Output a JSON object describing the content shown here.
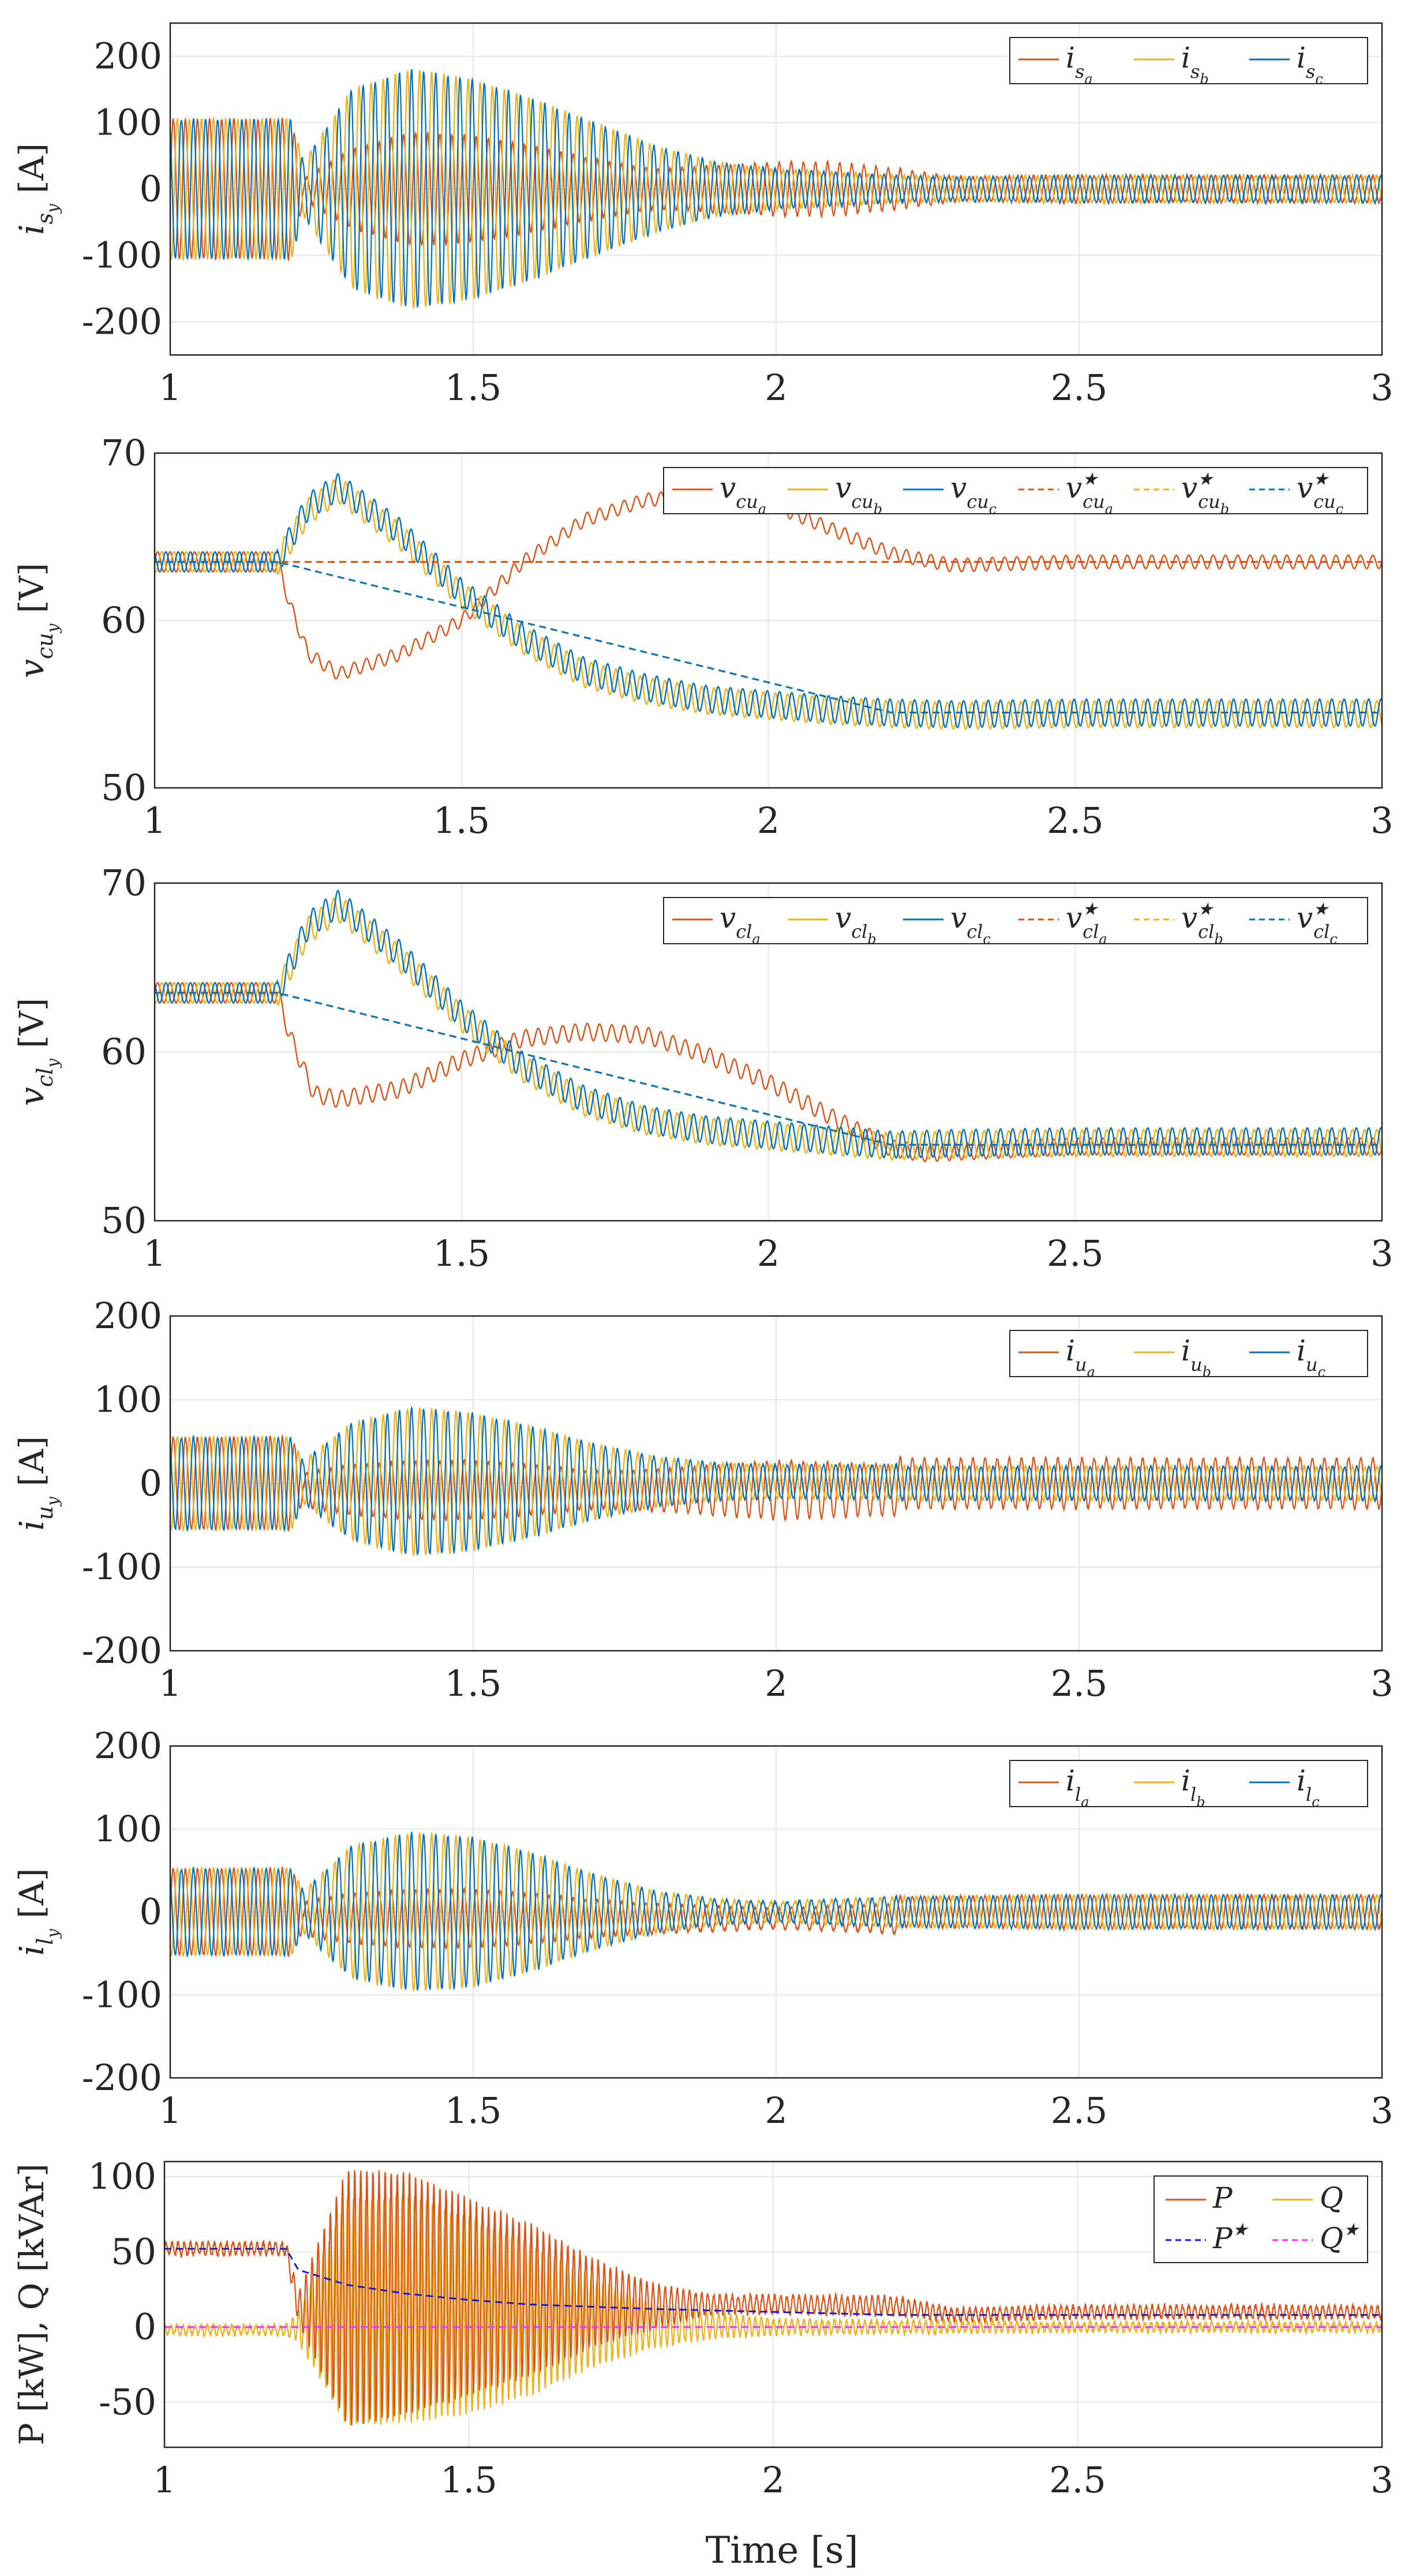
{
  "figure": {
    "xlabel": "Time [s]"
  },
  "colors": {
    "a": "#D95319",
    "b": "#EDB120",
    "c": "#0072BD",
    "refP": "#1a1acc",
    "refQ": "#ff33ff",
    "grid": "#e6e6e6",
    "axis": "#262626"
  },
  "chart_data": [
    {
      "id": "is",
      "type": "line",
      "title": "",
      "xlabel": "",
      "ylabel": {
        "main": "i",
        "sub": "s",
        "subsub": "y",
        "unit": "[A]"
      },
      "xlim": [
        1,
        3
      ],
      "ylim": [
        -250,
        250
      ],
      "xticks": [
        "1",
        "1.5",
        "2",
        "2.5",
        "3"
      ],
      "yticks": [
        "200",
        "100",
        "0",
        "-100",
        "-200"
      ],
      "ytick_values": [
        200,
        100,
        0,
        -100,
        -200
      ],
      "legend": {
        "position": "top-right",
        "layout": "row",
        "entries": [
          {
            "main": "i",
            "sub": "s",
            "subsub": "a",
            "color_key": "a",
            "dash": false
          },
          {
            "main": "i",
            "sub": "s",
            "subsub": "b",
            "color_key": "b",
            "dash": false
          },
          {
            "main": "i",
            "sub": "s",
            "subsub": "c",
            "color_key": "c",
            "dash": false
          }
        ]
      },
      "envelope": {
        "t": [
          1.0,
          1.2,
          1.22,
          1.3,
          1.4,
          1.5,
          1.6,
          1.7,
          1.8,
          1.9,
          2.0,
          2.1,
          2.2,
          2.3,
          2.5,
          3.0
        ],
        "a": [
          105,
          105,
          15,
          60,
          85,
          80,
          65,
          45,
          30,
          35,
          40,
          40,
          30,
          18,
          20,
          20
        ],
        "b": [
          105,
          105,
          40,
          150,
          180,
          165,
          135,
          100,
          65,
          40,
          30,
          25,
          20,
          18,
          20,
          20
        ],
        "c": [
          105,
          105,
          40,
          150,
          180,
          165,
          135,
          100,
          65,
          40,
          30,
          25,
          20,
          18,
          20,
          20
        ]
      },
      "offset": {
        "a": 0,
        "b": 0,
        "c": 0
      },
      "refs": [],
      "noise": 4
    },
    {
      "id": "vcu",
      "type": "line",
      "title": "",
      "xlabel": "",
      "ylabel": {
        "main": "v",
        "sub": "cu",
        "subsub": "y",
        "unit": "[V]"
      },
      "xlim": [
        1,
        3
      ],
      "ylim": [
        50,
        70
      ],
      "xticks": [
        "1",
        "1.5",
        "2",
        "2.5",
        "3"
      ],
      "yticks": [
        "70",
        "60",
        "50"
      ],
      "ytick_values": [
        70,
        60,
        50
      ],
      "legend": {
        "position": "top-right",
        "layout": "row",
        "entries": [
          {
            "main": "v",
            "sub": "cu",
            "subsub": "a",
            "color_key": "a",
            "dash": false
          },
          {
            "main": "v",
            "sub": "cu",
            "subsub": "b",
            "color_key": "b",
            "dash": false
          },
          {
            "main": "v",
            "sub": "cu",
            "subsub": "c",
            "color_key": "c",
            "dash": false
          },
          {
            "main": "v",
            "sub": "cu",
            "subsub": "a",
            "color_key": "a",
            "dash": true,
            "star": true
          },
          {
            "main": "v",
            "sub": "cu",
            "subsub": "b",
            "color_key": "b",
            "dash": true,
            "star": true
          },
          {
            "main": "v",
            "sub": "cu",
            "subsub": "c",
            "color_key": "c",
            "dash": true,
            "star": true
          }
        ]
      },
      "signals": {
        "a": {
          "t": [
            1.0,
            1.2,
            1.22,
            1.25,
            1.3,
            1.4,
            1.5,
            1.6,
            1.7,
            1.8,
            1.9,
            2.0,
            2.1,
            2.2,
            2.3,
            2.5,
            3.0
          ],
          "v": [
            63.5,
            63.5,
            61,
            58,
            56.8,
            58,
            60,
            63.5,
            66,
            67.2,
            67.5,
            67,
            65.5,
            64,
            63.3,
            63.5,
            63.5
          ],
          "amp": 0.4
        },
        "b": {
          "t": [
            1.0,
            1.2,
            1.25,
            1.3,
            1.4,
            1.5,
            1.6,
            1.7,
            1.8,
            1.9,
            2.0,
            2.1,
            2.2,
            2.3,
            2.5,
            3.0
          ],
          "v": [
            63.5,
            63.5,
            66.5,
            67.8,
            65,
            61.5,
            58.8,
            56.8,
            55.8,
            55.2,
            54.9,
            54.6,
            54.4,
            54.3,
            54.4,
            54.4
          ],
          "amp": 0.8
        },
        "c": {
          "t": [
            1.0,
            1.2,
            1.25,
            1.3,
            1.4,
            1.5,
            1.6,
            1.7,
            1.8,
            1.9,
            2.0,
            2.1,
            2.2,
            2.3,
            2.5,
            3.0
          ],
          "v": [
            63.5,
            63.5,
            66.8,
            68.0,
            65.3,
            61.7,
            59,
            57,
            56,
            55.3,
            55,
            54.7,
            54.5,
            54.4,
            54.5,
            54.5
          ],
          "amp": 0.8
        }
      },
      "refs": [
        {
          "color_key": "a",
          "t": [
            1.0,
            3.0
          ],
          "v": [
            63.5,
            63.5
          ]
        },
        {
          "color_key": "b",
          "t": [
            1.0,
            1.2,
            2.2,
            3.0
          ],
          "v": [
            63.5,
            63.5,
            54.5,
            54.5
          ]
        },
        {
          "color_key": "c",
          "t": [
            1.0,
            1.2,
            2.2,
            3.0
          ],
          "v": [
            63.5,
            63.5,
            54.5,
            54.5
          ]
        }
      ]
    },
    {
      "id": "vcl",
      "type": "line",
      "title": "",
      "xlabel": "",
      "ylabel": {
        "main": "v",
        "sub": "cl",
        "subsub": "y",
        "unit": "[V]"
      },
      "xlim": [
        1,
        3
      ],
      "ylim": [
        50,
        70
      ],
      "xticks": [
        "1",
        "1.5",
        "2",
        "2.5",
        "3"
      ],
      "yticks": [
        "70",
        "60",
        "50"
      ],
      "ytick_values": [
        70,
        60,
        50
      ],
      "legend": {
        "position": "top-right",
        "layout": "row",
        "entries": [
          {
            "main": "v",
            "sub": "cl",
            "subsub": "a",
            "color_key": "a",
            "dash": false
          },
          {
            "main": "v",
            "sub": "cl",
            "subsub": "b",
            "color_key": "b",
            "dash": false
          },
          {
            "main": "v",
            "sub": "cl",
            "subsub": "c",
            "color_key": "c",
            "dash": false
          },
          {
            "main": "v",
            "sub": "cl",
            "subsub": "a",
            "color_key": "a",
            "dash": true,
            "star": true
          },
          {
            "main": "v",
            "sub": "cl",
            "subsub": "b",
            "color_key": "b",
            "dash": true,
            "star": true
          },
          {
            "main": "v",
            "sub": "cl",
            "subsub": "c",
            "color_key": "c",
            "dash": true,
            "star": true
          }
        ]
      },
      "signals": {
        "a": {
          "t": [
            1.0,
            1.2,
            1.22,
            1.26,
            1.3,
            1.4,
            1.5,
            1.6,
            1.7,
            1.8,
            1.9,
            2.0,
            2.1,
            2.2,
            2.25,
            2.5,
            3.0
          ],
          "v": [
            63.5,
            63.5,
            61,
            57.5,
            57.2,
            57.8,
            59.5,
            60.8,
            61.2,
            61.0,
            59.8,
            58.2,
            56.2,
            54.3,
            54.0,
            54.4,
            54.4
          ],
          "amp": 0.5
        },
        "b": {
          "t": [
            1.0,
            1.2,
            1.25,
            1.3,
            1.4,
            1.5,
            1.6,
            1.7,
            1.8,
            1.9,
            2.0,
            2.1,
            2.2,
            2.3,
            2.5,
            3.0
          ],
          "v": [
            63.5,
            63.5,
            67.2,
            68.5,
            65.5,
            62,
            59,
            57,
            55.9,
            55.3,
            55.0,
            54.7,
            54.4,
            54.5,
            54.6,
            54.6
          ],
          "amp": 0.8
        },
        "c": {
          "t": [
            1.0,
            1.2,
            1.25,
            1.3,
            1.4,
            1.5,
            1.6,
            1.7,
            1.8,
            1.9,
            2.0,
            2.1,
            2.2,
            2.3,
            2.5,
            3.0
          ],
          "v": [
            63.5,
            63.5,
            67.5,
            68.8,
            65.8,
            62.2,
            59.2,
            57.2,
            56,
            55.4,
            55.1,
            54.8,
            54.5,
            54.6,
            54.7,
            54.7
          ],
          "amp": 0.8
        }
      },
      "refs": [
        {
          "color_key": "a",
          "t": [
            1.0,
            1.2,
            2.2,
            3.0
          ],
          "v": [
            63.5,
            63.5,
            54.5,
            54.5
          ]
        },
        {
          "color_key": "b",
          "t": [
            1.0,
            1.2,
            2.2,
            3.0
          ],
          "v": [
            63.5,
            63.5,
            54.5,
            54.5
          ]
        },
        {
          "color_key": "c",
          "t": [
            1.0,
            1.2,
            2.2,
            3.0
          ],
          "v": [
            63.5,
            63.5,
            54.5,
            54.5
          ]
        }
      ]
    },
    {
      "id": "iu",
      "type": "line",
      "title": "",
      "xlabel": "",
      "ylabel": {
        "main": "i",
        "sub": "u",
        "subsub": "y",
        "unit": "[A]"
      },
      "xlim": [
        1,
        3
      ],
      "ylim": [
        -200,
        200
      ],
      "xticks": [
        "1",
        "1.5",
        "2",
        "2.5",
        "3"
      ],
      "yticks": [
        "200",
        "100",
        "0",
        "-100",
        "-200"
      ],
      "ytick_values": [
        200,
        100,
        0,
        -100,
        -200
      ],
      "legend": {
        "position": "top-right",
        "layout": "row",
        "entries": [
          {
            "main": "i",
            "sub": "u",
            "subsub": "a",
            "color_key": "a",
            "dash": false
          },
          {
            "main": "i",
            "sub": "u",
            "subsub": "b",
            "color_key": "b",
            "dash": false
          },
          {
            "main": "i",
            "sub": "u",
            "subsub": "c",
            "color_key": "c",
            "dash": false
          }
        ]
      },
      "envelope": {
        "t": [
          1.0,
          1.2,
          1.22,
          1.3,
          1.4,
          1.5,
          1.6,
          1.7,
          1.8,
          1.9,
          2.0,
          2.2,
          2.5,
          3.0
        ],
        "a": [
          55,
          55,
          20,
          30,
          35,
          35,
          30,
          22,
          25,
          30,
          35,
          30,
          30,
          30
        ],
        "b": [
          55,
          55,
          25,
          70,
          88,
          82,
          65,
          45,
          30,
          22,
          20,
          20,
          20,
          20
        ],
        "c": [
          55,
          55,
          25,
          70,
          88,
          82,
          65,
          45,
          30,
          22,
          20,
          20,
          20,
          20
        ]
      },
      "offset": {
        "a": -8,
        "b": 2,
        "c": 2
      },
      "refs": [],
      "noise": 3
    },
    {
      "id": "il",
      "type": "line",
      "title": "",
      "xlabel": "",
      "ylabel": {
        "main": "i",
        "sub": "l",
        "subsub": "y",
        "unit": "[A]"
      },
      "xlim": [
        1,
        3
      ],
      "ylim": [
        -200,
        200
      ],
      "xticks": [
        "1",
        "1.5",
        "2",
        "2.5",
        "3"
      ],
      "yticks": [
        "200",
        "100",
        "0",
        "-100",
        "-200"
      ],
      "ytick_values": [
        200,
        100,
        0,
        -100,
        -200
      ],
      "legend": {
        "position": "top-right",
        "layout": "row",
        "entries": [
          {
            "main": "i",
            "sub": "l",
            "subsub": "a",
            "color_key": "a",
            "dash": false
          },
          {
            "main": "i",
            "sub": "l",
            "subsub": "b",
            "color_key": "b",
            "dash": false
          },
          {
            "main": "i",
            "sub": "l",
            "subsub": "c",
            "color_key": "c",
            "dash": false
          }
        ]
      },
      "envelope": {
        "t": [
          1.0,
          1.2,
          1.22,
          1.3,
          1.4,
          1.5,
          1.6,
          1.7,
          1.8,
          1.9,
          2.0,
          2.2,
          2.5,
          3.0
        ],
        "a": [
          52,
          52,
          20,
          30,
          35,
          35,
          30,
          22,
          18,
          15,
          12,
          18,
          20,
          20
        ],
        "b": [
          52,
          52,
          25,
          80,
          95,
          90,
          70,
          45,
          25,
          15,
          12,
          18,
          20,
          20
        ],
        "c": [
          52,
          52,
          25,
          80,
          95,
          90,
          70,
          45,
          25,
          15,
          12,
          18,
          20,
          20
        ]
      },
      "offset": {
        "a": -8,
        "b": 0,
        "c": 0
      },
      "refs": [],
      "noise": 3
    },
    {
      "id": "pq",
      "type": "line",
      "title": "",
      "xlabel": "Time [s]",
      "ylabel": {
        "text": "P [kW], Q [kVAr]"
      },
      "xlim": [
        1,
        3
      ],
      "ylim": [
        -80,
        110
      ],
      "xticks": [
        "1",
        "1.5",
        "2",
        "2.5",
        "3"
      ],
      "yticks": [
        "100",
        "50",
        "0",
        "-50"
      ],
      "ytick_values": [
        100,
        50,
        0,
        -50
      ],
      "legend": {
        "position": "top-right",
        "layout": "grid2",
        "entries": [
          {
            "main": "P",
            "color_key": "a",
            "dash": false
          },
          {
            "main": "Q",
            "color_key": "b",
            "dash": false
          },
          {
            "main": "P",
            "color_key": "refP",
            "dash": true,
            "star": true
          },
          {
            "main": "Q",
            "color_key": "refQ",
            "dash": true,
            "star": true
          }
        ]
      },
      "signals": {
        "P": {
          "t": [
            1.0,
            1.2,
            1.22,
            1.3,
            1.4,
            1.5,
            1.6,
            1.7,
            1.8,
            1.9,
            2.0,
            2.2,
            2.3,
            2.5,
            3.0
          ],
          "mean": [
            52,
            52,
            12,
            20,
            22,
            20,
            18,
            16,
            14,
            15,
            15,
            14,
            8,
            10,
            10
          ],
          "amp": [
            4,
            4,
            10,
            85,
            80,
            65,
            50,
            30,
            15,
            6,
            6,
            6,
            4,
            4,
            4
          ]
        },
        "Q": {
          "t": [
            1.0,
            1.2,
            1.22,
            1.3,
            1.4,
            1.5,
            1.6,
            1.7,
            1.8,
            1.9,
            2.0,
            2.2,
            2.5,
            3.0
          ],
          "mean": [
            -2,
            -2,
            0,
            10,
            12,
            8,
            5,
            3,
            1,
            1,
            0,
            0,
            0,
            0
          ],
          "amp": [
            3,
            3,
            10,
            75,
            75,
            65,
            50,
            30,
            15,
            8,
            5,
            4,
            3,
            3
          ]
        }
      },
      "refs": [
        {
          "color_key": "refP",
          "t": [
            1.0,
            1.2,
            1.22,
            1.3,
            1.4,
            1.5,
            1.6,
            1.8,
            2.0,
            2.2,
            3.0
          ],
          "v": [
            52,
            52,
            38,
            28,
            22,
            18,
            15,
            12,
            10,
            8,
            8
          ]
        },
        {
          "color_key": "refQ",
          "t": [
            1.0,
            3.0
          ],
          "v": [
            0,
            0
          ]
        }
      ]
    }
  ]
}
